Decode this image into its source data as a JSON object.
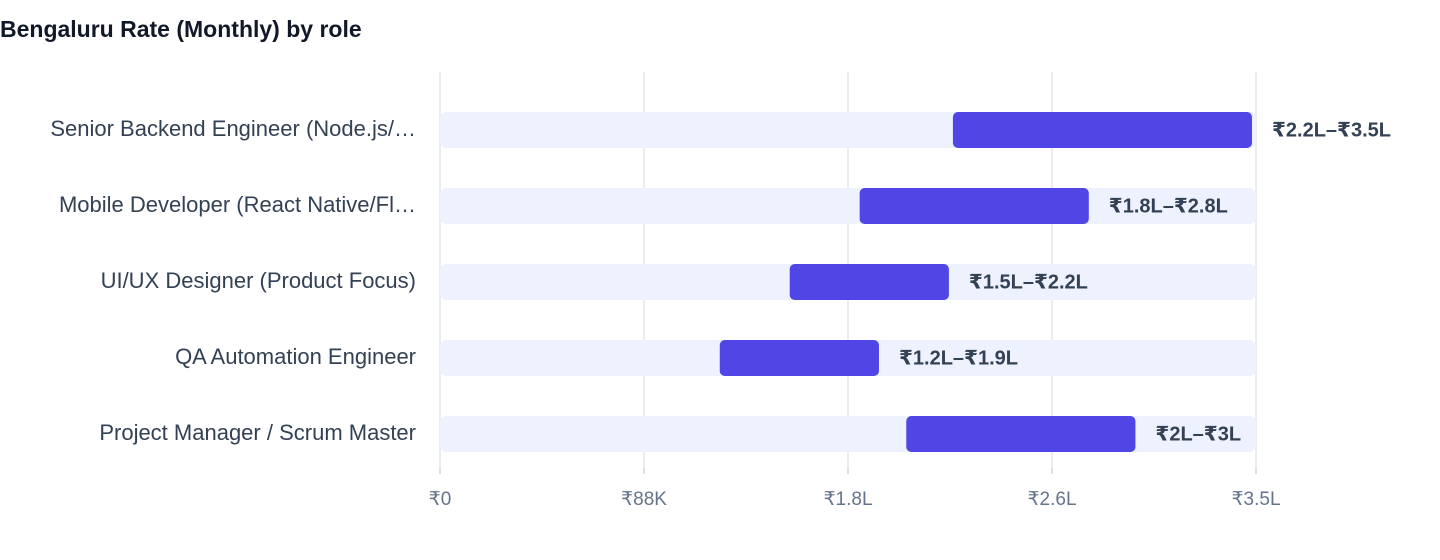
{
  "chart_data": {
    "type": "range-bar",
    "title": "Bengaluru Rate (Monthly) by role",
    "categories": [
      "Senior Backend Engineer (Node.js/…",
      "Mobile Developer (React Native/Fl…",
      "UI/UX Designer (Product Focus)",
      "QA Automation Engineer",
      "Project Manager / Scrum Master"
    ],
    "low": [
      220000,
      180000,
      150000,
      120000,
      200000
    ],
    "high": [
      350000,
      280000,
      220000,
      190000,
      300000
    ],
    "value_labels": [
      "₹2.2L–₹3.5L",
      "₹1.8L–₹2.8L",
      "₹1.5L–₹2.2L",
      "₹1.2L–₹1.9L",
      "₹2L–₹3L"
    ],
    "color": "#4f46e5",
    "track_color": "#eef2ff",
    "xlim": [
      0,
      350000
    ],
    "xticks": [
      {
        "value": 0,
        "label": "₹0"
      },
      {
        "value": 87500,
        "label": "₹88K"
      },
      {
        "value": 175000,
        "label": "₹1.8L"
      },
      {
        "value": 262500,
        "label": "₹2.6L"
      },
      {
        "value": 350000,
        "label": "₹3.5L"
      }
    ],
    "grid": true
  }
}
